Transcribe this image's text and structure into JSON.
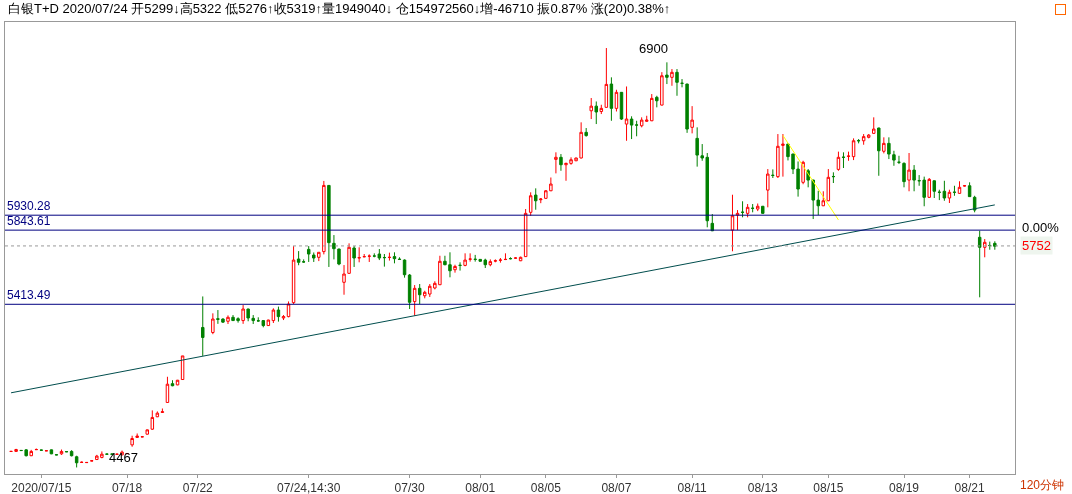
{
  "chart_data": {
    "type": "candlestick",
    "title": "白银T+D 2020/07/24 开5299↓高5322 低5276↑收5319↑量1949040↓ 仓154972560↓增-46710 振0.87% 涨(20)0.38%↑",
    "categories": [
      null,
      null,
      null,
      null,
      null,
      null,
      "2020/07/15",
      null,
      null,
      null,
      null,
      null,
      null,
      null,
      null,
      null,
      null,
      null,
      null,
      null,
      null,
      null,
      null,
      "07/18",
      null,
      null,
      null,
      null,
      null,
      null,
      null,
      null,
      null,
      null,
      null,
      null,
      null,
      "07/22",
      null,
      null,
      null,
      null,
      null,
      null,
      null,
      null,
      null,
      null,
      null,
      null,
      null,
      null,
      null,
      null,
      null,
      null,
      null,
      null,
      null,
      "07/24,14:30",
      null,
      null,
      null,
      null,
      null,
      null,
      null,
      null,
      null,
      null,
      null,
      null,
      null,
      null,
      null,
      null,
      null,
      null,
      null,
      "07/30",
      null,
      null,
      null,
      null,
      null,
      null,
      null,
      null,
      null,
      null,
      null,
      null,
      null,
      "08/01",
      null,
      null,
      null,
      null,
      null,
      null,
      null,
      null,
      null,
      null,
      null,
      null,
      "08/05",
      null,
      null,
      null,
      null,
      null,
      null,
      null,
      null,
      null,
      null,
      null,
      null,
      null,
      "08/07",
      null,
      null,
      null,
      null,
      null,
      null,
      null,
      null,
      null,
      null,
      null,
      null,
      null,
      null,
      "08/11",
      null,
      null,
      null,
      null,
      null,
      null,
      null,
      null,
      null,
      null,
      null,
      null,
      null,
      "08/13",
      null,
      null,
      null,
      null,
      null,
      null,
      null,
      null,
      null,
      null,
      null,
      null,
      "08/15",
      null,
      null,
      null,
      null,
      null,
      null,
      null,
      null,
      null,
      null,
      null,
      null,
      null,
      null,
      "08/19",
      null,
      null,
      null,
      null,
      null,
      null,
      null,
      null,
      null,
      null,
      null,
      null,
      "08/21",
      null,
      null,
      null,
      null,
      null
    ],
    "ohlc": [
      [
        4560,
        4563,
        4557,
        4560
      ],
      [
        4560,
        4575,
        4557,
        4571
      ],
      [
        4566,
        4568,
        4563,
        4565
      ],
      [
        4569,
        4573,
        4531,
        4535
      ],
      [
        4535,
        4569,
        4533,
        4560
      ],
      [
        4570,
        4577,
        4569,
        4571
      ],
      [
        4568,
        4570,
        4565,
        4567
      ],
      [
        4563,
        4567,
        4562,
        4564
      ],
      [
        4569,
        4571,
        4544,
        4546
      ],
      [
        4541,
        4543,
        4538,
        4540
      ],
      [
        4546,
        4571,
        4540,
        4560
      ],
      [
        4559,
        4561,
        4556,
        4558
      ],
      [
        4560,
        4567,
        4531,
        4535
      ],
      [
        4529,
        4535,
        4467,
        4494
      ],
      [
        4496,
        4502,
        4494,
        4497
      ],
      [
        4495,
        4498,
        4494,
        4496
      ],
      [
        4504,
        4508,
        4503,
        4506
      ],
      [
        4513,
        4540,
        4510,
        4533
      ],
      [
        4525,
        4560,
        4520,
        4544
      ],
      [
        4545,
        4547,
        4542,
        4544
      ],
      [
        4545,
        4547,
        4542,
        4544
      ],
      [
        4543,
        4547,
        4542,
        4544
      ],
      [
        4540,
        4565,
        4538,
        4556
      ],
      [
        4547,
        4550,
        4546,
        4548
      ],
      [
        4598,
        4651,
        4587,
        4635
      ],
      [
        4641,
        4664,
        4639,
        4649
      ],
      [
        4644,
        4647,
        4643,
        4645
      ],
      [
        4660,
        4687,
        4658,
        4685
      ],
      [
        4689,
        4798,
        4685,
        4757
      ],
      [
        4761,
        4792,
        4759,
        4782
      ],
      [
        4786,
        4809,
        4784,
        4790
      ],
      [
        4844,
        4993,
        4842,
        4950
      ],
      [
        4953,
        4973,
        4938,
        4941
      ],
      [
        4946,
        4975,
        4944,
        4973
      ],
      [
        4977,
        5114,
        4975,
        5114
      ],
      null,
      null,
      null,
      [
        5279,
        5459,
        5114,
        5221
      ],
      null,
      [
        5250,
        5361,
        5240,
        5328
      ],
      [
        5330,
        5380,
        5300,
        5326
      ],
      [
        5328,
        5332,
        5306,
        5310
      ],
      [
        5315,
        5349,
        5299,
        5338
      ],
      [
        5338,
        5351,
        5317,
        5319
      ],
      [
        5330,
        5338,
        5307,
        5319
      ],
      [
        5319,
        5409,
        5300,
        5386
      ],
      [
        5386,
        5388,
        5315,
        5334
      ],
      [
        5332,
        5351,
        5299,
        5319
      ],
      [
        5318,
        5338,
        5313,
        5317
      ],
      [
        5319,
        5321,
        5280,
        5290
      ],
      [
        5290,
        5324,
        5288,
        5322
      ],
      [
        5319,
        5390,
        5305,
        5380
      ],
      [
        5380,
        5400,
        5313,
        5342
      ],
      [
        5334,
        5351,
        5322,
        5342
      ],
      [
        5342,
        5430,
        5338,
        5415
      ],
      [
        5423,
        5751,
        5415,
        5670
      ],
      [
        5676,
        5722,
        5640,
        5657
      ],
      [
        5660,
        5674,
        5655,
        5659
      ],
      [
        5732,
        5751,
        5659,
        5705
      ],
      [
        5699,
        5714,
        5659,
        5682
      ],
      [
        5686,
        5715,
        5664,
        5715
      ],
      [
        5719,
        6129,
        5703,
        6103
      ],
      [
        6103,
        6105,
        5630,
        5771
      ],
      [
        5767,
        5815,
        5674,
        5736
      ],
      [
        5734,
        5736,
        5640,
        5647
      ],
      [
        5541,
        5641,
        5469,
        5589
      ],
      [
        5593,
        5767,
        5591,
        5744
      ],
      [
        5740,
        5751,
        5630,
        5682
      ],
      [
        5682,
        5744,
        5657,
        5684
      ],
      [
        5689,
        5705,
        5686,
        5690
      ],
      [
        5692,
        5703,
        5659,
        5693
      ],
      [
        5694,
        5709,
        5686,
        5693
      ],
      [
        5705,
        5734,
        5670,
        5682
      ],
      [
        5685,
        5705,
        5632,
        5684
      ],
      [
        5685,
        5713,
        5667,
        5686
      ],
      [
        5690,
        5715,
        5651,
        5678
      ],
      [
        5675,
        5686,
        5672,
        5674
      ],
      [
        5670,
        5674,
        5568,
        5585
      ],
      [
        5583,
        5589,
        5386,
        5425
      ],
      [
        5429,
        5525,
        5347,
        5506
      ],
      [
        5506,
        5531,
        5415,
        5469
      ],
      [
        5463,
        5492,
        5448,
        5483
      ],
      [
        5473,
        5531,
        5456,
        5518
      ],
      [
        5508,
        5547,
        5500,
        5535
      ],
      [
        5527,
        5695,
        5525,
        5663
      ],
      [
        5663,
        5695,
        5640,
        5643
      ],
      [
        5643,
        5715,
        5570,
        5608
      ],
      [
        5614,
        5643,
        5597,
        5633
      ],
      [
        5640,
        5657,
        5609,
        5639
      ],
      [
        5639,
        5709,
        5634,
        5670
      ],
      [
        5675,
        5709,
        5661,
        5676
      ],
      [
        5675,
        5700,
        5661,
        5674
      ],
      [
        5674,
        5676,
        5661,
        5663
      ],
      [
        5670,
        5678,
        5624,
        5643
      ],
      [
        5643,
        5674,
        5634,
        5661
      ],
      [
        5664,
        5674,
        5657,
        5666
      ],
      [
        5669,
        5682,
        5655,
        5670
      ],
      [
        5673,
        5709,
        5670,
        5674
      ],
      [
        5679,
        5686,
        5674,
        5678
      ],
      [
        5681,
        5686,
        5678,
        5682
      ],
      [
        5666,
        5690,
        5664,
        5686
      ],
      [
        5690,
        5966,
        5688,
        5941
      ],
      [
        5947,
        6063,
        5927,
        6043
      ],
      [
        6047,
        6086,
        5962,
        6014
      ],
      [
        6020,
        6030,
        6000,
        6024
      ],
      [
        6028,
        6076,
        6026,
        6072
      ],
      [
        6072,
        6149,
        6070,
        6111
      ],
      [
        6254,
        6295,
        6173,
        6266
      ],
      [
        6266,
        6285,
        6188,
        6223
      ],
      [
        6223,
        6235,
        6130,
        6231
      ],
      [
        6231,
        6266,
        6223,
        6252
      ],
      [
        6246,
        6264,
        6244,
        6262
      ],
      [
        6262,
        6469,
        6260,
        6411
      ],
      [
        6411,
        6436,
        6386,
        6392
      ],
      [
        6536,
        6610,
        6488,
        6563
      ],
      [
        6563,
        6590,
        6459,
        6529
      ],
      [
        6532,
        6571,
        6517,
        6550
      ],
      [
        6556,
        6900,
        6554,
        6689
      ],
      [
        6691,
        6730,
        6478,
        6550
      ],
      [
        6550,
        6658,
        6532,
        6643
      ],
      [
        6643,
        6645,
        6483,
        6488
      ],
      [
        6459,
        6677,
        6362,
        6488
      ],
      [
        6488,
        6504,
        6372,
        6453
      ],
      [
        6454,
        6478,
        6388,
        6453
      ],
      [
        6449,
        6498,
        6440,
        6482
      ],
      [
        6475,
        6507,
        6471,
        6482
      ],
      [
        6478,
        6633,
        6476,
        6608
      ],
      [
        6614,
        6623,
        6556,
        6594
      ],
      [
        6569,
        6760,
        6567,
        6739
      ],
      [
        6743,
        6817,
        6691,
        6730
      ],
      [
        6730,
        6778,
        6681,
        6759
      ],
      [
        6759,
        6778,
        6623,
        6701
      ],
      [
        6696,
        6720,
        6672,
        6695
      ],
      [
        6691,
        6693,
        6408,
        6430
      ],
      [
        6440,
        6563,
        6405,
        6482
      ],
      [
        6376,
        6440,
        6212,
        6279
      ],
      [
        6275,
        6343,
        6246,
        6262
      ],
      [
        6266,
        6291,
        5860,
        5898
      ],
      [
        5883,
        5937,
        5838,
        5840
      ],
      null,
      null,
      null,
      [
        5844,
        6049,
        5721,
        5927
      ],
      [
        5931,
        5960,
        5844,
        5941
      ],
      [
        5948,
        6011,
        5918,
        5947
      ],
      [
        5941,
        5995,
        5918,
        5976
      ],
      [
        5971,
        5995,
        5947,
        5970
      ],
      [
        5966,
        5998,
        5954,
        5982
      ],
      [
        5982,
        5984,
        5939,
        5941
      ],
      [
        6076,
        6198,
        5976,
        6169
      ],
      [
        6162,
        6196,
        6146,
        6161
      ],
      [
        6154,
        6401,
        6146,
        6330
      ],
      [
        6335,
        6401,
        6154,
        6343
      ],
      [
        6343,
        6345,
        6248,
        6270
      ],
      [
        6285,
        6287,
        6169,
        6198
      ],
      [
        6198,
        6242,
        6038,
        6082
      ],
      [
        6121,
        6246,
        6110,
        6237
      ],
      [
        6188,
        6198,
        6092,
        6134
      ],
      [
        6134,
        6136,
        5908,
        6018
      ],
      [
        6018,
        6072,
        5931,
        5985
      ],
      [
        5985,
        6069,
        5983,
        6014
      ],
      [
        6014,
        6198,
        6012,
        6150
      ],
      [
        6155,
        6179,
        6117,
        6154
      ],
      [
        6196,
        6299,
        6188,
        6266
      ],
      [
        6267,
        6295,
        6204,
        6266
      ],
      [
        6272,
        6299,
        6246,
        6273
      ],
      [
        6270,
        6376,
        6250,
        6362
      ],
      [
        6363,
        6372,
        6347,
        6362
      ],
      [
        6362,
        6401,
        6339,
        6386
      ],
      [
        6382,
        6401,
        6376,
        6395
      ],
      [
        6405,
        6498,
        6403,
        6430
      ],
      [
        6436,
        6438,
        6159,
        6304
      ],
      [
        6301,
        6382,
        6289,
        6347
      ],
      [
        6347,
        6382,
        6256,
        6285
      ],
      [
        6281,
        6304,
        6217,
        6250
      ],
      [
        6238,
        6275,
        6227,
        6237
      ],
      [
        6231,
        6237,
        6092,
        6125
      ],
      [
        6134,
        6291,
        6069,
        6192
      ],
      [
        6192,
        6221,
        6069,
        6134
      ],
      [
        6131,
        6163,
        6101,
        6130
      ],
      [
        6134,
        6154,
        5982,
        6034
      ],
      [
        6034,
        6146,
        6030,
        6138
      ],
      [
        6130,
        6132,
        6030,
        6069
      ],
      [
        6064,
        6078,
        6018,
        6063
      ],
      [
        6069,
        6130,
        6014,
        6030
      ],
      [
        6030,
        6078,
        6001,
        6063
      ],
      [
        6064,
        6101,
        6043,
        6063
      ],
      [
        6057,
        6127,
        6054,
        6092
      ],
      [
        6100,
        6105,
        6097,
        6101
      ],
      [
        6101,
        6121,
        6036,
        6038
      ],
      [
        6034,
        6043,
        5947,
        5960
      ],
      [
        5802,
        5840,
        5454,
        5744
      ],
      [
        5744,
        5792,
        5686,
        5773
      ],
      [
        5755,
        5777,
        5730,
        5754
      ],
      [
        5767,
        5779,
        5730,
        5750
      ]
    ],
    "series": [
      {
        "type": "line",
        "color": "#004d4d",
        "values": [
          4900,
          null,
          null,
          null,
          null,
          null,
          null,
          null,
          null,
          null,
          null,
          null,
          null,
          null,
          null,
          null,
          null,
          null,
          null,
          null,
          null,
          null,
          null,
          null,
          null,
          null,
          null,
          null,
          null,
          null,
          null,
          null,
          null,
          null,
          null,
          null,
          null,
          null,
          null,
          null,
          null,
          null,
          null,
          null,
          null,
          null,
          null,
          null,
          null,
          null,
          null,
          null,
          null,
          null,
          null,
          null,
          null,
          null,
          null,
          null,
          null,
          null,
          null,
          null,
          null,
          null,
          null,
          null,
          null,
          null,
          null,
          null,
          null,
          null,
          null,
          null,
          null,
          null,
          null,
          null,
          null,
          null,
          null,
          null,
          null,
          null,
          null,
          null,
          null,
          null,
          null,
          null,
          null,
          null,
          null,
          null,
          null,
          null,
          null,
          null,
          null,
          null,
          null,
          null,
          null,
          null,
          null,
          null,
          null,
          null,
          null,
          null,
          null,
          null,
          null,
          null,
          null,
          null,
          null,
          null,
          null,
          null,
          null,
          null,
          null,
          null,
          null,
          null,
          null,
          null,
          null,
          null,
          null,
          null,
          null,
          null,
          null,
          null,
          null,
          null,
          null,
          null,
          null,
          null,
          null,
          null,
          null,
          null,
          null,
          null,
          null,
          null,
          null,
          null,
          null,
          null,
          null,
          null,
          null,
          null,
          null,
          null,
          null,
          null,
          null,
          null,
          null,
          null,
          null,
          null,
          null,
          null,
          null,
          null,
          null,
          null,
          null,
          null,
          null,
          null,
          null,
          null,
          null,
          null,
          null,
          null,
          null,
          null,
          null,
          null,
          null,
          null,
          null,
          null,
          null,
          5990
        ]
      },
      {
        "type": "line",
        "color": "#ffff00",
        "values": [
          null,
          null,
          null,
          null,
          null,
          null,
          null,
          null,
          null,
          null,
          null,
          null,
          null,
          null,
          null,
          null,
          null,
          null,
          null,
          null,
          null,
          null,
          null,
          null,
          null,
          null,
          null,
          null,
          null,
          null,
          null,
          null,
          null,
          null,
          null,
          null,
          null,
          null,
          null,
          null,
          null,
          null,
          null,
          null,
          null,
          null,
          null,
          null,
          null,
          null,
          null,
          null,
          null,
          null,
          null,
          null,
          null,
          null,
          null,
          null,
          null,
          null,
          null,
          null,
          null,
          null,
          null,
          null,
          null,
          null,
          null,
          null,
          null,
          null,
          null,
          null,
          null,
          null,
          null,
          null,
          null,
          null,
          null,
          null,
          null,
          null,
          null,
          null,
          null,
          null,
          null,
          null,
          null,
          null,
          null,
          null,
          null,
          null,
          null,
          null,
          null,
          null,
          null,
          null,
          null,
          null,
          null,
          null,
          null,
          null,
          null,
          null,
          null,
          null,
          null,
          null,
          null,
          null,
          null,
          null,
          null,
          null,
          null,
          null,
          null,
          null,
          null,
          null,
          null,
          null,
          null,
          null,
          null,
          null,
          null,
          null,
          null,
          null,
          null,
          null,
          null,
          null,
          null,
          null,
          null,
          null,
          null,
          null,
          null,
          null,
          null,
          null,
          null,
          6393,
          null,
          null,
          null,
          null,
          null,
          null,
          null,
          null,
          null,
          null,
          5903,
          null,
          null,
          null,
          null,
          null,
          null,
          null,
          null,
          null,
          null,
          null,
          null,
          null,
          null,
          null,
          null,
          null,
          null,
          null,
          null,
          null,
          null,
          null,
          null,
          null,
          null,
          null,
          null,
          null,
          null,
          null
        ]
      }
    ],
    "ref_lines": [
      {
        "axis": "y",
        "value": 5930.28,
        "label": "5930.28",
        "color": "#000080",
        "line_style": "solid"
      },
      {
        "axis": "y",
        "value": 5843.61,
        "label": "5843.61",
        "color": "#000080",
        "line_style": "solid"
      },
      {
        "axis": "y",
        "value": 5413.49,
        "label": "5413.49",
        "color": "#000080",
        "line_style": "solid"
      },
      {
        "axis": "y",
        "value": 5752,
        "label": "5752",
        "color": "#999999",
        "line_style": "dotted"
      }
    ],
    "annotations": [
      "6900",
      "4467",
      "0.00%",
      "120分钟"
    ],
    "ylim": [
      4429,
      7051
    ],
    "tick_labels": "x",
    "grid": false
  }
}
